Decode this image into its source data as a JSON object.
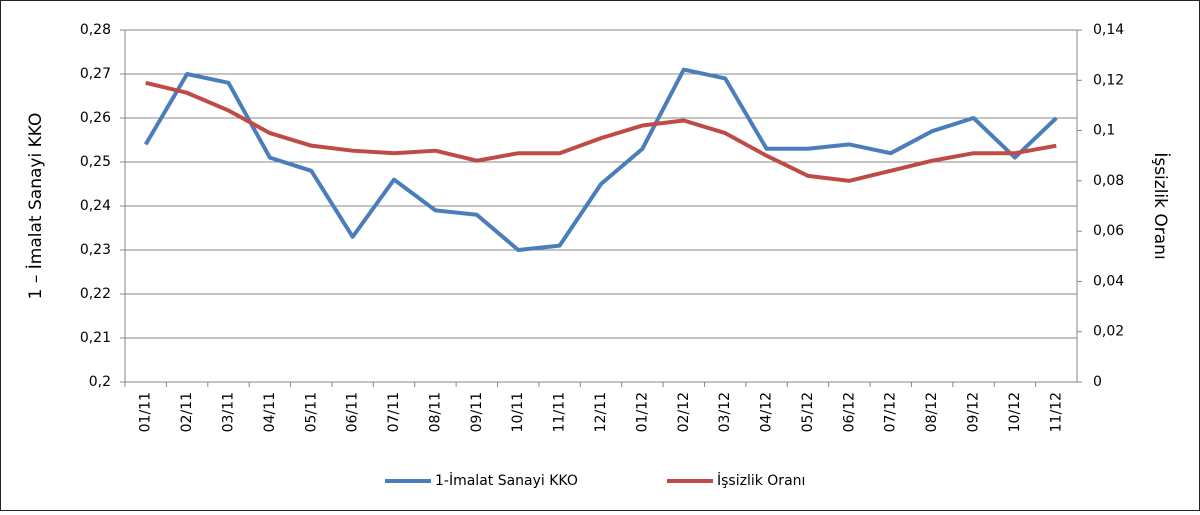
{
  "chart_data": {
    "type": "line",
    "y_label": "1 – İmalat Sanayi KKO",
    "y2_label": "İşsizlik Oranı",
    "categories": [
      "01/11",
      "02/11",
      "03/11",
      "04/11",
      "05/11",
      "06/11",
      "07/11",
      "08/11",
      "09/11",
      "10/11",
      "11/11",
      "12/11",
      "01/12",
      "02/12",
      "03/12",
      "04/12",
      "05/12",
      "06/12",
      "07/12",
      "08/12",
      "09/12",
      "10/12",
      "11/12"
    ],
    "series": [
      {
        "name": "1-İmalat Sanayi KKO",
        "color": "#4a7ebb",
        "values": [
          0.254,
          0.27,
          0.268,
          0.251,
          0.248,
          0.233,
          0.246,
          0.239,
          0.238,
          0.23,
          0.231,
          0.245,
          0.253,
          0.271,
          0.269,
          0.253,
          0.253,
          0.254,
          0.252,
          0.257,
          0.26,
          0.251,
          0.26
        ]
      },
      {
        "name": "İşsizlik Oranı",
        "color": "#be4b48",
        "axis": "y2",
        "values": [
          0.119,
          0.115,
          0.108,
          0.099,
          0.094,
          0.092,
          0.091,
          0.092,
          0.088,
          0.091,
          0.091,
          0.097,
          0.102,
          0.104,
          0.099,
          0.09,
          0.082,
          0.08,
          0.084,
          0.088,
          0.091,
          0.091,
          0.094
        ]
      }
    ],
    "ylim": [
      0.2,
      0.28
    ],
    "yticks": [
      {
        "value": 0.2,
        "label": "0,2"
      },
      {
        "value": 0.21,
        "label": "0,21"
      },
      {
        "value": 0.22,
        "label": "0,22"
      },
      {
        "value": 0.23,
        "label": "0,23"
      },
      {
        "value": 0.24,
        "label": "0,24"
      },
      {
        "value": 0.25,
        "label": "0,25"
      },
      {
        "value": 0.26,
        "label": "0,26"
      },
      {
        "value": 0.27,
        "label": "0,27"
      },
      {
        "value": 0.28,
        "label": "0,28"
      }
    ],
    "y2lim": [
      0,
      0.14
    ],
    "y2ticks": [
      0,
      {
        "value": 0.02,
        "label": "0,02"
      },
      {
        "value": 0.04,
        "label": "0,04"
      },
      {
        "value": 0.06,
        "label": "0,06"
      },
      {
        "value": 0.08,
        "label": "0,08"
      },
      {
        "value": 0.1,
        "label": "0,1"
      },
      {
        "value": 0.12,
        "label": "0,12"
      },
      {
        "value": 0.14,
        "label": "0,14"
      }
    ],
    "grid": true,
    "legend": "bottom"
  }
}
